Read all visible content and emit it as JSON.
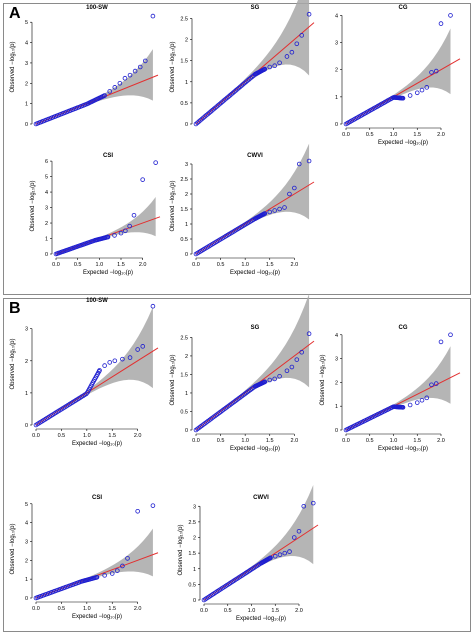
{
  "panels": [
    {
      "letter": "A"
    },
    {
      "letter": "B"
    }
  ],
  "axis_text": {
    "xlabel": "Expected  −log₁₀(p)",
    "ylabel": "Observed  −log₁₀(p)"
  },
  "colors": {
    "points": "#1f1fd0",
    "line": "#e23030",
    "band": "#a8a8a8",
    "axis": "#000000"
  },
  "chart_data": [
    {
      "type": "scatter",
      "panel": "A",
      "title": "100-SW",
      "xlim": [
        0,
        2.4
      ],
      "ylim": [
        0,
        5.6
      ],
      "xticks": [],
      "yticks": [
        0,
        1,
        2,
        3,
        4,
        5
      ],
      "show_xlabel": false,
      "show_ylabel": true,
      "max_x": 2.3,
      "tail": [
        [
          1.35,
          1.4
        ],
        [
          1.45,
          1.6
        ],
        [
          1.55,
          1.8
        ],
        [
          1.65,
          2.0
        ],
        [
          1.75,
          2.25
        ],
        [
          1.85,
          2.4
        ],
        [
          1.95,
          2.6
        ],
        [
          2.05,
          2.8
        ],
        [
          2.15,
          3.1
        ],
        [
          2.3,
          5.3
        ]
      ],
      "bend_start": 1.0,
      "bend_end": 1.35,
      "bend_y": 1.4
    },
    {
      "type": "scatter",
      "panel": "A",
      "title": "SG",
      "xlim": [
        0,
        2.4
      ],
      "ylim": [
        0,
        2.7
      ],
      "xticks": [],
      "yticks": [
        0,
        0.5,
        1.0,
        1.5,
        2.0,
        2.5
      ],
      "show_xlabel": false,
      "show_ylabel": true,
      "max_x": 2.3,
      "tail": [
        [
          1.4,
          1.3
        ],
        [
          1.5,
          1.35
        ],
        [
          1.6,
          1.38
        ],
        [
          1.7,
          1.45
        ],
        [
          1.85,
          1.6
        ],
        [
          1.95,
          1.7
        ],
        [
          2.05,
          1.9
        ],
        [
          2.15,
          2.1
        ],
        [
          2.3,
          2.6
        ]
      ],
      "bend_start": 1.2,
      "bend_end": 1.4,
      "bend_y": 1.3
    },
    {
      "type": "scatter",
      "panel": "A",
      "title": "CG",
      "xlim": [
        0,
        2.4
      ],
      "ylim": [
        0,
        4.2
      ],
      "xticks": [
        0,
        0.5,
        1.0,
        1.5,
        2.0
      ],
      "yticks": [
        0,
        1,
        2,
        3,
        4
      ],
      "show_xlabel": true,
      "show_ylabel": false,
      "max_x": 2.2,
      "tail": [
        [
          1.2,
          0.95
        ],
        [
          1.35,
          1.05
        ],
        [
          1.5,
          1.15
        ],
        [
          1.6,
          1.25
        ],
        [
          1.7,
          1.35
        ],
        [
          1.8,
          1.9
        ],
        [
          1.9,
          1.95
        ],
        [
          2.0,
          3.7
        ],
        [
          2.2,
          4.0
        ]
      ],
      "bend_start": 1.0,
      "bend_end": 1.2,
      "bend_y": 0.95
    },
    {
      "type": "scatter",
      "panel": "A",
      "title": "CSI",
      "xlim": [
        0,
        2.4
      ],
      "ylim": [
        0,
        6.2
      ],
      "xticks": [
        0,
        0.5,
        1.0,
        1.5,
        2.0
      ],
      "yticks": [
        0,
        1,
        2,
        3,
        4,
        5,
        6
      ],
      "show_xlabel": true,
      "show_ylabel": true,
      "max_x": 2.3,
      "tail": [
        [
          1.2,
          1.1
        ],
        [
          1.35,
          1.2
        ],
        [
          1.5,
          1.35
        ],
        [
          1.6,
          1.5
        ],
        [
          1.7,
          1.8
        ],
        [
          1.8,
          2.5
        ],
        [
          2.0,
          4.8
        ],
        [
          2.3,
          5.9
        ]
      ],
      "bend_start": 0.9,
      "bend_end": 1.2,
      "bend_y": 1.1
    },
    {
      "type": "scatter",
      "panel": "A",
      "title": "CWVI",
      "xlim": [
        0,
        2.4
      ],
      "ylim": [
        0,
        3.2
      ],
      "xticks": [
        0,
        0.5,
        1.0,
        1.5,
        2.0
      ],
      "yticks": [
        0,
        0.5,
        1.0,
        1.5,
        2.0,
        2.5,
        3.0
      ],
      "show_xlabel": true,
      "show_ylabel": true,
      "max_x": 2.3,
      "tail": [
        [
          1.4,
          1.35
        ],
        [
          1.5,
          1.4
        ],
        [
          1.6,
          1.45
        ],
        [
          1.7,
          1.5
        ],
        [
          1.8,
          1.55
        ],
        [
          1.9,
          2.0
        ],
        [
          2.0,
          2.2
        ],
        [
          2.1,
          3.0
        ],
        [
          2.3,
          3.1
        ]
      ],
      "bend_start": 1.2,
      "bend_end": 1.4,
      "bend_y": 1.35
    },
    {
      "type": "scatter",
      "panel": "B",
      "title": "100-SW",
      "xlim": [
        0,
        2.4
      ],
      "ylim": [
        0,
        3.8
      ],
      "xticks": [
        0,
        0.5,
        1.0,
        1.5,
        2.0
      ],
      "yticks": [
        0,
        1,
        2,
        3
      ],
      "show_xlabel": true,
      "show_ylabel": true,
      "max_x": 2.3,
      "tail": [
        [
          1.25,
          1.7
        ],
        [
          1.35,
          1.85
        ],
        [
          1.45,
          1.95
        ],
        [
          1.55,
          2.0
        ],
        [
          1.7,
          2.05
        ],
        [
          1.85,
          2.1
        ],
        [
          2.0,
          2.35
        ],
        [
          2.1,
          2.45
        ],
        [
          2.3,
          3.7
        ]
      ],
      "bend_start": 1.0,
      "bend_end": 1.25,
      "bend_y": 1.7
    },
    {
      "type": "scatter",
      "panel": "B",
      "title": "SG",
      "xlim": [
        0,
        2.4
      ],
      "ylim": [
        0,
        2.7
      ],
      "xticks": [
        0,
        0.5,
        1.0,
        1.5,
        2.0
      ],
      "yticks": [
        0,
        0.5,
        1.0,
        1.5,
        2.0,
        2.5
      ],
      "show_xlabel": true,
      "show_ylabel": true,
      "max_x": 2.3,
      "tail": [
        [
          1.4,
          1.3
        ],
        [
          1.5,
          1.35
        ],
        [
          1.6,
          1.38
        ],
        [
          1.7,
          1.45
        ],
        [
          1.85,
          1.6
        ],
        [
          1.95,
          1.7
        ],
        [
          2.05,
          1.9
        ],
        [
          2.15,
          2.1
        ],
        [
          2.3,
          2.6
        ]
      ],
      "bend_start": 1.2,
      "bend_end": 1.4,
      "bend_y": 1.3
    },
    {
      "type": "scatter",
      "panel": "B",
      "title": "CG",
      "xlim": [
        0,
        2.4
      ],
      "ylim": [
        0,
        4.2
      ],
      "xticks": [
        0,
        0.5,
        1.0,
        1.5,
        2.0
      ],
      "yticks": [
        0,
        1,
        2,
        3,
        4
      ],
      "show_xlabel": true,
      "show_ylabel": true,
      "max_x": 2.2,
      "tail": [
        [
          1.2,
          0.95
        ],
        [
          1.35,
          1.05
        ],
        [
          1.5,
          1.15
        ],
        [
          1.6,
          1.25
        ],
        [
          1.7,
          1.35
        ],
        [
          1.8,
          1.9
        ],
        [
          1.9,
          1.95
        ],
        [
          2.0,
          3.7
        ],
        [
          2.2,
          4.0
        ]
      ],
      "bend_start": 1.0,
      "bend_end": 1.2,
      "bend_y": 0.95
    },
    {
      "type": "scatter",
      "panel": "B",
      "title": "CSI",
      "xlim": [
        0,
        2.4
      ],
      "ylim": [
        0,
        5.2
      ],
      "xticks": [
        0,
        0.5,
        1.0,
        1.5,
        2.0
      ],
      "yticks": [
        0,
        1,
        2,
        3,
        4,
        5
      ],
      "show_xlabel": true,
      "show_ylabel": true,
      "max_x": 2.3,
      "tail": [
        [
          1.2,
          1.1
        ],
        [
          1.35,
          1.2
        ],
        [
          1.5,
          1.3
        ],
        [
          1.6,
          1.45
        ],
        [
          1.7,
          1.7
        ],
        [
          1.8,
          2.1
        ],
        [
          2.0,
          4.6
        ],
        [
          2.3,
          4.9
        ]
      ],
      "bend_start": 0.9,
      "bend_end": 1.2,
      "bend_y": 1.1
    },
    {
      "type": "scatter",
      "panel": "B",
      "title": "CWVI",
      "xlim": [
        0,
        2.4
      ],
      "ylim": [
        0,
        3.2
      ],
      "xticks": [
        0,
        0.5,
        1.0,
        1.5,
        2.0
      ],
      "yticks": [
        0,
        0.5,
        1.0,
        1.5,
        2.0,
        2.5,
        3.0
      ],
      "show_xlabel": true,
      "show_ylabel": true,
      "max_x": 2.3,
      "tail": [
        [
          1.4,
          1.35
        ],
        [
          1.5,
          1.4
        ],
        [
          1.6,
          1.45
        ],
        [
          1.7,
          1.5
        ],
        [
          1.8,
          1.55
        ],
        [
          1.9,
          2.0
        ],
        [
          2.0,
          2.2
        ],
        [
          2.1,
          3.0
        ],
        [
          2.3,
          3.1
        ]
      ],
      "bend_start": 1.2,
      "bend_end": 1.4,
      "bend_y": 1.35
    }
  ]
}
